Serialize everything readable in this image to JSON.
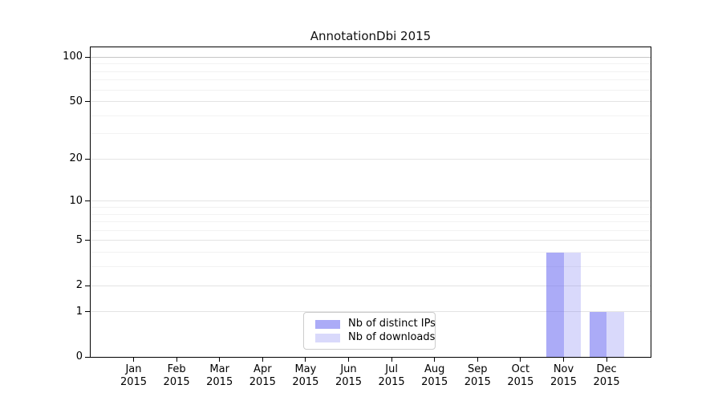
{
  "chart_data": {
    "type": "bar",
    "title": "AnnotationDbi 2015",
    "x_year": "2015",
    "categories": [
      "Jan",
      "Feb",
      "Mar",
      "Apr",
      "May",
      "Jun",
      "Jul",
      "Aug",
      "Sep",
      "Oct",
      "Nov",
      "Dec"
    ],
    "series": [
      {
        "name": "Nb of distinct IPs",
        "color": "rgba(102,102,240,0.55)",
        "color_hex_on_white": "#aaaaf5",
        "values": [
          0,
          0,
          0,
          0,
          0,
          0,
          0,
          0,
          0,
          0,
          4,
          1
        ]
      },
      {
        "name": "Nb of downloads",
        "color": "rgba(102,102,240,0.25)",
        "color_hex_on_white": "#d9d9fa",
        "values": [
          0,
          0,
          0,
          0,
          0,
          0,
          0,
          0,
          0,
          0,
          4,
          1
        ]
      }
    ],
    "xlabel": "",
    "ylabel": "",
    "yscale": "log1p",
    "ylim": [
      0,
      115
    ],
    "yticks": [
      0,
      1,
      2,
      5,
      10,
      20,
      50,
      100
    ],
    "minor_gridlines": [
      3,
      4,
      6,
      7,
      8,
      9,
      30,
      40,
      60,
      70,
      80,
      90
    ],
    "grid": "horizontal",
    "legend_position": "lower center",
    "colors": {
      "spine": "#000000",
      "major_grid": "#e4e4e4",
      "top_major_grid": "#c6c6c6",
      "minor_grid": "#f2f2f2",
      "legend_border": "#cccccc"
    }
  }
}
